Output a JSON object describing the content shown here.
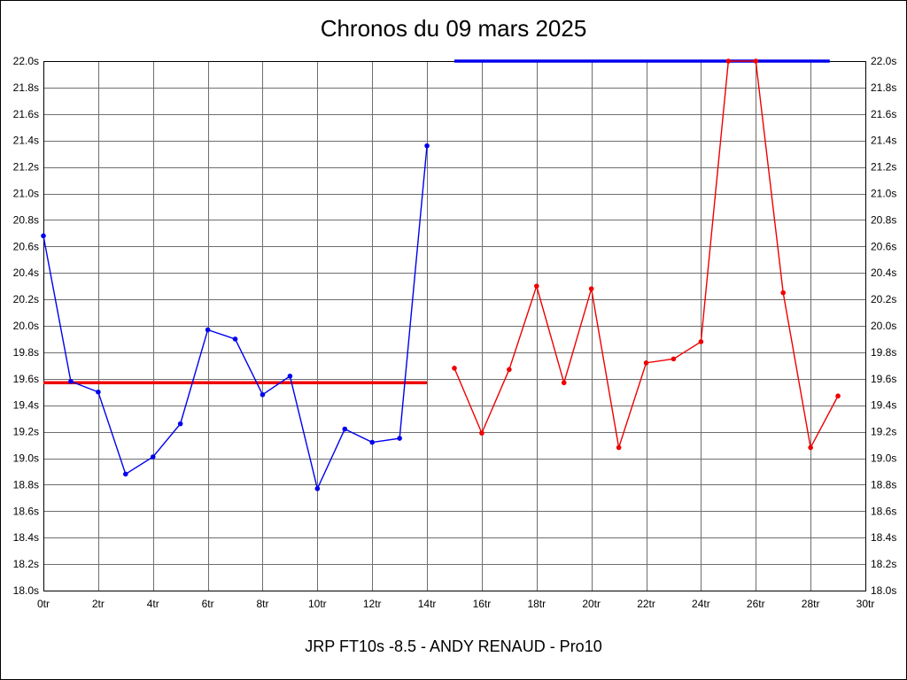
{
  "chart_data": {
    "type": "line",
    "title": "Chronos du 09 mars 2025",
    "subtitle": "JRP FT10s -8.5 - ANDY RENAUD - Pro10",
    "xlabel": "",
    "ylabel": "",
    "xlim": [
      0,
      30
    ],
    "ylim": [
      18.0,
      22.0
    ],
    "grid": true,
    "grid_color": "#6e6e6e",
    "axis_color": "#000000",
    "background_color": "#ffffff",
    "legend": "none",
    "x_ticks": [
      0,
      2,
      4,
      6,
      8,
      10,
      12,
      14,
      16,
      18,
      20,
      22,
      24,
      26,
      28,
      30
    ],
    "x_tick_labels": [
      "0tr",
      "2tr",
      "4tr",
      "6tr",
      "8tr",
      "10tr",
      "12tr",
      "14tr",
      "16tr",
      "18tr",
      "20tr",
      "22tr",
      "24tr",
      "26tr",
      "28tr",
      "30tr"
    ],
    "y_ticks": [
      18.0,
      18.2,
      18.4,
      18.6,
      18.8,
      19.0,
      19.2,
      19.4,
      19.6,
      19.8,
      20.0,
      20.2,
      20.4,
      20.6,
      20.8,
      21.0,
      21.2,
      21.4,
      21.6,
      21.8,
      22.0
    ],
    "y_tick_labels": [
      "18.0s",
      "18.2s",
      "18.4s",
      "18.6s",
      "18.8s",
      "19.0s",
      "19.2s",
      "19.4s",
      "19.6s",
      "19.8s",
      "20.0s",
      "20.2s",
      "20.4s",
      "20.6s",
      "20.8s",
      "21.0s",
      "21.2s",
      "21.4s",
      "21.6s",
      "21.8s",
      "22.0s"
    ],
    "series": [
      {
        "name": "first-half-laps",
        "color": "#0000ee",
        "x": [
          0,
          1,
          2,
          3,
          4,
          5,
          6,
          7,
          8,
          9,
          10,
          11,
          12,
          13,
          14
        ],
        "values": [
          20.68,
          19.58,
          19.5,
          18.88,
          19.01,
          19.26,
          19.97,
          19.9,
          19.48,
          19.62,
          18.77,
          19.22,
          19.12,
          19.15,
          21.36
        ]
      },
      {
        "name": "second-half-laps",
        "color": "#ee0000",
        "x": [
          15,
          16,
          17,
          18,
          19,
          20,
          21,
          22,
          23,
          24,
          25,
          26,
          27,
          28,
          29
        ],
        "values": [
          19.68,
          19.19,
          19.67,
          20.3,
          19.57,
          20.28,
          19.08,
          19.72,
          19.75,
          19.88,
          22.0,
          22.0,
          20.25,
          19.08,
          19.47
        ]
      }
    ],
    "reference_lines": [
      {
        "name": "average-line-first-half",
        "color": "#ee0000",
        "y": 19.57,
        "x1": 0,
        "x2": 14
      },
      {
        "name": "average-line-second-half",
        "color": "#0000ee",
        "y": 22.0,
        "x1": 15,
        "x2": 28.7
      }
    ]
  }
}
